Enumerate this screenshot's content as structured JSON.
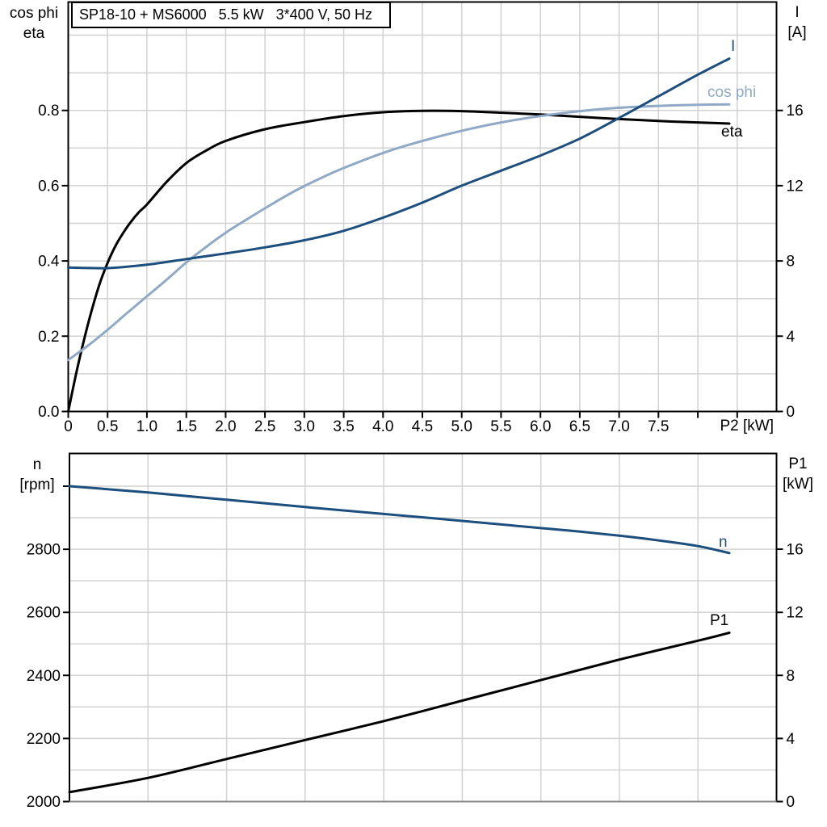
{
  "title": "SP18-10 + MS6000   5.5 kW   3*400 V, 50 Hz",
  "colors": {
    "dark_blue": "#1c4e7e",
    "light_blue": "#8fa9c6",
    "black": "#000000",
    "grid": "#d2d2d2",
    "axis_gray": "#888888",
    "background": "#ffffff"
  },
  "chart_data": [
    {
      "id": "top-chart",
      "type": "line",
      "title": "SP18-10 + MS6000   5.5 kW   3*400 V, 50 Hz",
      "x_axis": {
        "label": "P2 [kW]",
        "range": [
          0,
          9
        ],
        "gridline_step": 0.5,
        "ticks": [
          [
            0,
            "0"
          ],
          [
            0.5,
            "0.5"
          ],
          [
            1,
            "1.0"
          ],
          [
            1.5,
            "1.5"
          ],
          [
            2,
            "2.0"
          ],
          [
            2.5,
            "2.5"
          ],
          [
            3,
            "3.0"
          ],
          [
            3.5,
            "3.5"
          ],
          [
            4,
            "4.0"
          ],
          [
            4.5,
            "4.5"
          ],
          [
            5,
            "5.0"
          ],
          [
            5.5,
            "5.5"
          ],
          [
            6,
            "6.0"
          ],
          [
            6.5,
            "6.5"
          ],
          [
            7,
            "7.0"
          ],
          [
            7.5,
            "7.5"
          ],
          [
            8,
            ""
          ],
          [
            8.5,
            ""
          ]
        ]
      },
      "y_left": {
        "label": "cos phi / eta",
        "unit": "",
        "range": [
          0,
          1.088
        ],
        "gridline_step": 0.1,
        "ticks": [
          [
            0,
            "0.0"
          ],
          [
            0.2,
            "0.2"
          ],
          [
            0.4,
            "0.4"
          ],
          [
            0.6,
            "0.6"
          ],
          [
            0.8,
            "0.8"
          ]
        ]
      },
      "y_right": {
        "label": "I",
        "unit": "[A]",
        "range": [
          0,
          21.76
        ],
        "ticks": [
          [
            0,
            "0"
          ],
          [
            4,
            "4"
          ],
          [
            8,
            "8"
          ],
          [
            12,
            "12"
          ],
          [
            16,
            "16"
          ]
        ]
      },
      "series": [
        {
          "name": "eta",
          "axis": "left",
          "color_key": "black",
          "points": [
            [
              0,
              0
            ],
            [
              0.1,
              0.1
            ],
            [
              0.2,
              0.19
            ],
            [
              0.3,
              0.27
            ],
            [
              0.4,
              0.34
            ],
            [
              0.5,
              0.395
            ],
            [
              0.6,
              0.44
            ],
            [
              0.7,
              0.475
            ],
            [
              0.8,
              0.505
            ],
            [
              0.9,
              0.53
            ],
            [
              1.0,
              0.55
            ],
            [
              1.25,
              0.61
            ],
            [
              1.5,
              0.66
            ],
            [
              1.75,
              0.693
            ],
            [
              2.0,
              0.719
            ],
            [
              2.5,
              0.75
            ],
            [
              3.0,
              0.769
            ],
            [
              3.5,
              0.785
            ],
            [
              4.0,
              0.795
            ],
            [
              4.5,
              0.799
            ],
            [
              5.0,
              0.798
            ],
            [
              5.5,
              0.794
            ],
            [
              6.0,
              0.789
            ],
            [
              6.5,
              0.783
            ],
            [
              7.0,
              0.777
            ],
            [
              7.5,
              0.772
            ],
            [
              8.0,
              0.768
            ],
            [
              8.4,
              0.765
            ]
          ]
        },
        {
          "name": "cos phi",
          "axis": "left",
          "color_key": "light_blue",
          "points": [
            [
              0,
              0.137
            ],
            [
              0.25,
              0.175
            ],
            [
              0.5,
              0.217
            ],
            [
              0.75,
              0.262
            ],
            [
              1.0,
              0.306
            ],
            [
              1.25,
              0.35
            ],
            [
              1.5,
              0.396
            ],
            [
              1.75,
              0.437
            ],
            [
              2.0,
              0.475
            ],
            [
              2.25,
              0.508
            ],
            [
              2.5,
              0.54
            ],
            [
              2.75,
              0.571
            ],
            [
              3.0,
              0.599
            ],
            [
              3.25,
              0.624
            ],
            [
              3.5,
              0.647
            ],
            [
              4.0,
              0.687
            ],
            [
              4.5,
              0.719
            ],
            [
              5.0,
              0.746
            ],
            [
              5.5,
              0.768
            ],
            [
              6.0,
              0.785
            ],
            [
              6.5,
              0.798
            ],
            [
              7.0,
              0.807
            ],
            [
              7.5,
              0.812
            ],
            [
              8.0,
              0.815
            ],
            [
              8.4,
              0.816
            ]
          ]
        },
        {
          "name": "I",
          "axis": "right",
          "color_key": "dark_blue",
          "points": [
            [
              0,
              7.65
            ],
            [
              0.5,
              7.62
            ],
            [
              1.0,
              7.8
            ],
            [
              1.5,
              8.1
            ],
            [
              2.0,
              8.4
            ],
            [
              2.5,
              8.72
            ],
            [
              3.0,
              9.1
            ],
            [
              3.5,
              9.6
            ],
            [
              4.0,
              10.3
            ],
            [
              4.5,
              11.1
            ],
            [
              5.0,
              12.0
            ],
            [
              5.5,
              12.8
            ],
            [
              6.0,
              13.6
            ],
            [
              6.5,
              14.5
            ],
            [
              7.0,
              15.6
            ],
            [
              7.5,
              16.75
            ],
            [
              8.0,
              17.9
            ],
            [
              8.4,
              18.75
            ]
          ]
        }
      ]
    },
    {
      "id": "bottom-chart",
      "type": "line",
      "x_axis": {
        "label": "",
        "range": [
          0,
          9
        ],
        "gridline_step": 1,
        "ticks": []
      },
      "y_left": {
        "label": "n",
        "unit": "[rpm]",
        "range": [
          2000,
          3103.7
        ],
        "gridline_step": 100,
        "ticks": [
          [
            2000,
            "2000"
          ],
          [
            2200,
            "2200"
          ],
          [
            2400,
            "2400"
          ],
          [
            2600,
            "2600"
          ],
          [
            2800,
            "2800"
          ],
          [
            3000,
            ""
          ]
        ]
      },
      "y_right": {
        "label": "P1",
        "unit": "[kW]",
        "range": [
          0,
          22.07
        ],
        "ticks": [
          [
            0,
            "0"
          ],
          [
            4,
            "4"
          ],
          [
            8,
            "8"
          ],
          [
            12,
            "12"
          ],
          [
            16,
            "16"
          ]
        ]
      },
      "series": [
        {
          "name": "n",
          "axis": "left",
          "color_key": "dark_blue",
          "points": [
            [
              0,
              3000
            ],
            [
              1,
              2980
            ],
            [
              2,
              2957
            ],
            [
              3,
              2934
            ],
            [
              4,
              2912
            ],
            [
              5,
              2890
            ],
            [
              6,
              2867
            ],
            [
              6.5,
              2856
            ],
            [
              7,
              2843
            ],
            [
              7.5,
              2828
            ],
            [
              8,
              2810
            ],
            [
              8.4,
              2788
            ]
          ]
        },
        {
          "name": "P1",
          "axis": "right",
          "color_key": "black",
          "points": [
            [
              0,
              0.6
            ],
            [
              1,
              1.5
            ],
            [
              2,
              2.7
            ],
            [
              3,
              3.9
            ],
            [
              4,
              5.1
            ],
            [
              5,
              6.4
            ],
            [
              6,
              7.7
            ],
            [
              7,
              9.0
            ],
            [
              8,
              10.2
            ],
            [
              8.4,
              10.7
            ]
          ]
        }
      ]
    }
  ]
}
